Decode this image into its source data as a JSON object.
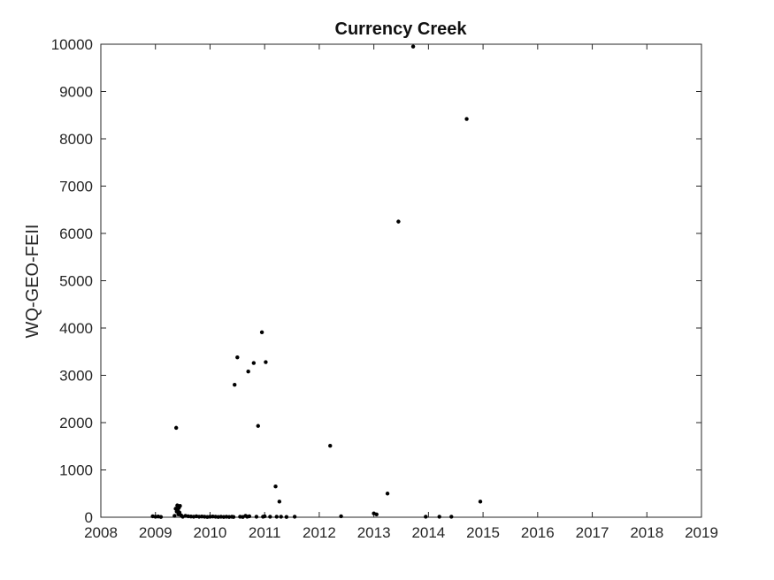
{
  "chart_data": {
    "type": "scatter",
    "title": "Currency Creek",
    "xlabel": "",
    "ylabel": "WQ-GEO-FEII",
    "xlim": [
      2008,
      2019
    ],
    "ylim": [
      0,
      10000
    ],
    "xticks": [
      "2008",
      "2009",
      "2010",
      "2011",
      "2012",
      "2013",
      "2014",
      "2015",
      "2016",
      "2017",
      "2018",
      "2019"
    ],
    "yticks": [
      "0",
      "1000",
      "2000",
      "3000",
      "4000",
      "5000",
      "6000",
      "7000",
      "8000",
      "9000",
      "10000"
    ],
    "grid": false,
    "marker_color": "#000000",
    "series": [
      {
        "x": [
          2008.95,
          2009.0,
          2009.05,
          2009.1,
          2009.35,
          2009.37,
          2009.38,
          2009.39,
          2009.4,
          2009.41,
          2009.42,
          2009.43,
          2009.44,
          2009.45,
          2009.47,
          2009.5,
          2009.55,
          2009.6,
          2009.65,
          2009.7,
          2009.75,
          2009.8,
          2009.85,
          2009.9,
          2009.95,
          2010.0,
          2010.05,
          2010.1,
          2010.15,
          2010.2,
          2010.25,
          2010.3,
          2010.35,
          2010.4,
          2010.43,
          2010.45,
          2010.5,
          2010.55,
          2010.6,
          2010.65,
          2010.68,
          2010.7,
          2010.72,
          2010.8,
          2010.85,
          2010.88,
          2010.95,
          2010.97,
          2011.0,
          2011.02,
          2011.1,
          2011.2,
          2011.22,
          2011.27,
          2011.3,
          2011.4,
          2011.55,
          2012.2,
          2012.4,
          2013.0,
          2013.05,
          2013.25,
          2013.45,
          2013.72,
          2013.95,
          2014.2,
          2014.42,
          2014.7,
          2014.95
        ],
        "y": [
          20,
          10,
          15,
          5,
          30,
          180,
          1890,
          120,
          250,
          150,
          60,
          200,
          100,
          240,
          40,
          10,
          30,
          20,
          15,
          10,
          20,
          10,
          15,
          10,
          5,
          10,
          15,
          10,
          5,
          10,
          5,
          10,
          5,
          10,
          5,
          2800,
          3380,
          10,
          5,
          30,
          10,
          3080,
          20,
          3260,
          10,
          1930,
          3910,
          10,
          20,
          3280,
          10,
          650,
          10,
          330,
          10,
          5,
          10,
          1510,
          20,
          80,
          60,
          500,
          6250,
          9950,
          10,
          10,
          10,
          8420,
          330
        ]
      }
    ]
  }
}
